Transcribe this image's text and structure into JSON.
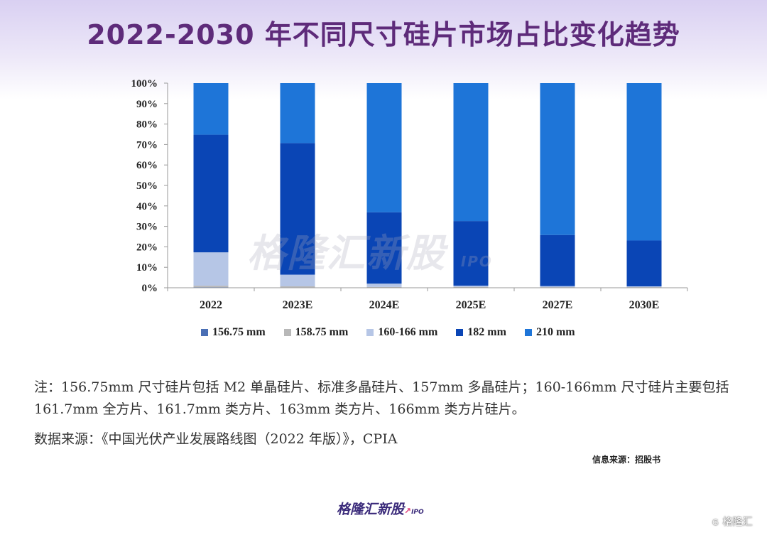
{
  "title": "2022-2030 年不同尺寸硅片市场占比变化趋势",
  "chart_data": {
    "type": "bar",
    "stacked": true,
    "title": "2022-2030 年不同尺寸硅片市场占比变化趋势",
    "categories": [
      "2022",
      "2023E",
      "2024E",
      "2025E",
      "2027E",
      "2030E"
    ],
    "ylim": [
      0,
      100
    ],
    "y_ticks": [
      "0%",
      "10%",
      "20%",
      "30%",
      "40%",
      "50%",
      "60%",
      "70%",
      "80%",
      "90%",
      "100%"
    ],
    "series": [
      {
        "name": "156.75 mm",
        "color": "#4a6fb5",
        "values": [
          0.3,
          0.2,
          0.1,
          0.1,
          0.1,
          0.1
        ]
      },
      {
        "name": "158.75 mm",
        "color": "#b8b8b8",
        "values": [
          0.7,
          0.5,
          0.3,
          0.3,
          0.2,
          0.2
        ]
      },
      {
        "name": "160-166 mm",
        "color": "#b6c6e6",
        "values": [
          16.3,
          5.7,
          1.6,
          0.6,
          0.5,
          0.4
        ]
      },
      {
        "name": "182 mm",
        "color": "#0a45b5",
        "values": [
          57.5,
          64.3,
          34.9,
          31.6,
          25.0,
          22.4
        ]
      },
      {
        "name": "210 mm",
        "color": "#1e75d8",
        "values": [
          25.2,
          29.3,
          63.1,
          67.4,
          74.2,
          76.9
        ]
      }
    ],
    "grid": false,
    "legend_position": "bottom"
  },
  "watermark": {
    "text": "格隆汇新股",
    "suffix": "IPO"
  },
  "note": "注：156.75mm 尺寸硅片包括 M2 单晶硅片、标准多晶硅片、157mm 多晶硅片；160-166mm 尺寸硅片主要包括 161.7mm 全方片、161.7mm 类方片、163mm 类方片、166mm 类方片硅片。",
  "source": "数据来源：《中国光伏产业发展路线图（2022 年版）》，CPIA",
  "info_source": "信息来源：招股书",
  "footer_logo": {
    "text": "格隆汇新股",
    "suffix": "IPO"
  },
  "corner_mark": {
    "text": "格隆汇",
    "glyph": "G"
  }
}
